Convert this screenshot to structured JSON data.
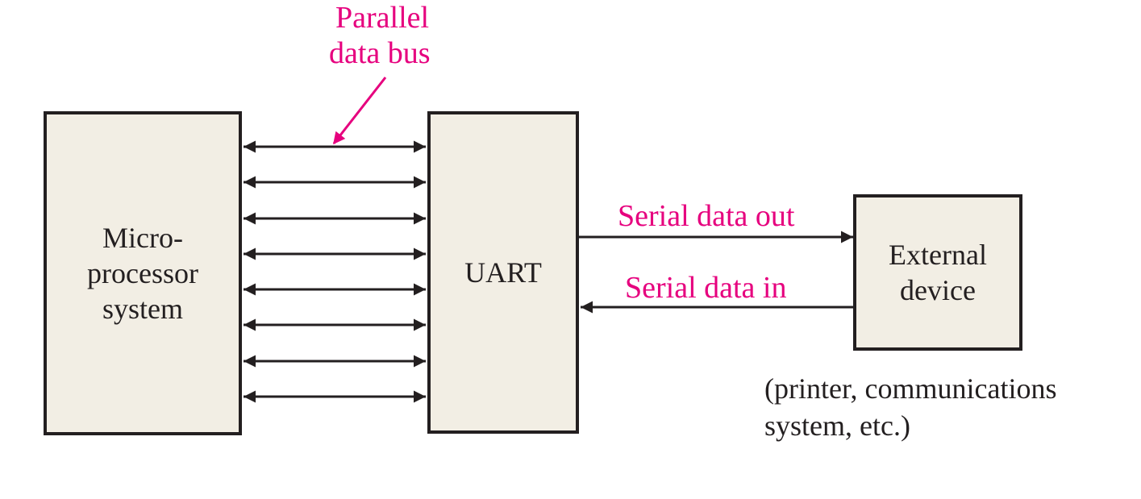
{
  "colors": {
    "background": "#ffffff",
    "block_fill": "#f2eee4",
    "outline": "#231f20",
    "label_accent": "#e6007e"
  },
  "blocks": {
    "microprocessor": {
      "label": "Micro-\nprocessor\nsystem"
    },
    "uart": {
      "label": "UART"
    },
    "external_device": {
      "label": "External\ndevice"
    }
  },
  "parallel_bus": {
    "label_line1": "Parallel",
    "label_line2": "data bus",
    "line_count": 8,
    "direction": "bidirectional"
  },
  "serial_out": {
    "label": "Serial data out",
    "direction": "UART to External device"
  },
  "serial_in": {
    "label": "Serial data in",
    "direction": "External device to UART"
  },
  "external_note": {
    "line1": "(printer, communications",
    "line2": "system, etc.)"
  }
}
